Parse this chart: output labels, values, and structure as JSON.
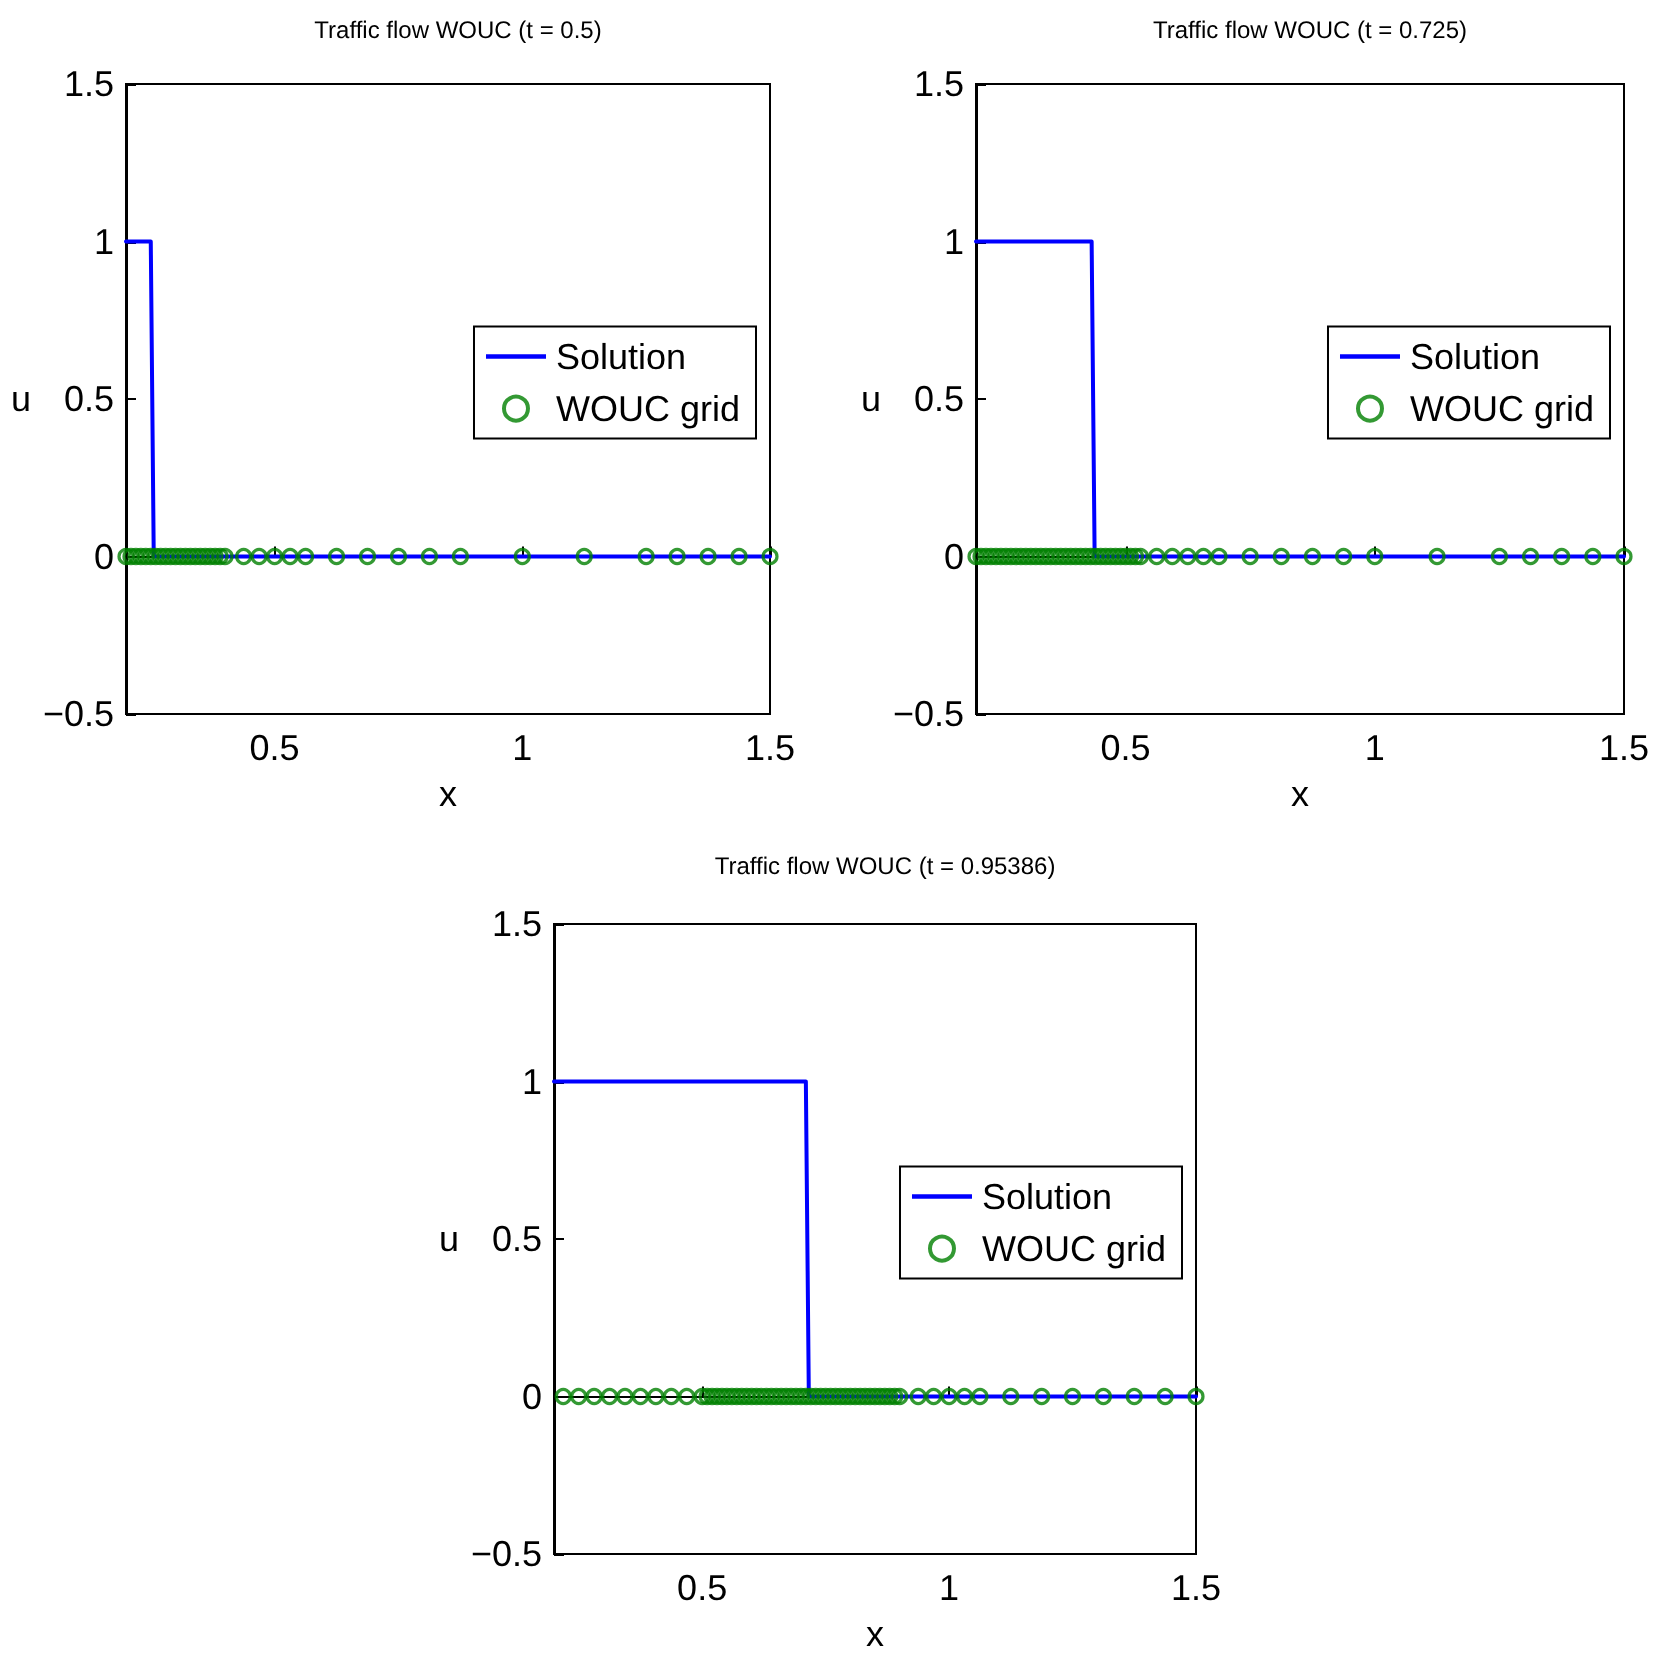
{
  "chart_data": [
    {
      "type": "line",
      "title": "Traffic flow WOUC (t = 0.5)",
      "xlabel": "x",
      "ylabel": "u",
      "xlim": [
        0.2,
        1.5
      ],
      "xticks": [
        0.5,
        1,
        1.5
      ],
      "ylim": [
        -0.5,
        1.5
      ],
      "yticks": [
        -0.5,
        0,
        0.5,
        1,
        1.5
      ],
      "legend": "right",
      "series": [
        {
          "name": "Solution",
          "type": "line",
          "marker": "none",
          "color": "#0000ff",
          "x": [
            0.2,
            0.25,
            0.256,
            1.5
          ],
          "values": [
            1,
            1,
            0,
            0
          ]
        },
        {
          "name": "WOUC grid",
          "type": "scatter",
          "marker": "circle",
          "color": "#008000",
          "x": [
            0.2,
            0.21,
            0.22,
            0.23,
            0.24,
            0.25,
            0.26,
            0.27,
            0.28,
            0.29,
            0.3,
            0.31,
            0.32,
            0.33,
            0.34,
            0.35,
            0.36,
            0.37,
            0.38,
            0.39,
            0.4,
            0.4375,
            0.46875,
            0.5,
            0.53125,
            0.5625,
            0.625,
            0.6875,
            0.75,
            0.8125,
            0.875,
            1,
            1.125,
            1.25,
            1.3125,
            1.375,
            1.4375,
            1.5
          ],
          "values": [
            0,
            0,
            0,
            0,
            0,
            0,
            0,
            0,
            0,
            0,
            0,
            0,
            0,
            0,
            0,
            0,
            0,
            0,
            0,
            0,
            0,
            0,
            0,
            0,
            0,
            0,
            0,
            0,
            0,
            0,
            0,
            0,
            0,
            0,
            0,
            0,
            0,
            0
          ]
        }
      ]
    },
    {
      "type": "line",
      "title": "Traffic flow WOUC (t = 0.725)",
      "xlabel": "x",
      "ylabel": "u",
      "xlim": [
        0.2,
        1.5
      ],
      "xticks": [
        0.5,
        1,
        1.5
      ],
      "ylim": [
        -0.5,
        1.5
      ],
      "yticks": [
        -0.5,
        0,
        0.5,
        1,
        1.5
      ],
      "legend": "right",
      "series": [
        {
          "name": "Solution",
          "type": "line",
          "marker": "none",
          "color": "#0000ff",
          "x": [
            0.2,
            0.432,
            0.438,
            1.5
          ],
          "values": [
            1,
            1,
            0,
            0
          ]
        },
        {
          "name": "WOUC grid",
          "type": "scatter",
          "marker": "circle",
          "color": "#008000",
          "x": [
            0.2,
            0.21,
            0.22,
            0.23,
            0.24,
            0.25,
            0.26,
            0.27,
            0.28,
            0.29,
            0.3,
            0.31,
            0.32,
            0.33,
            0.34,
            0.35,
            0.36,
            0.37,
            0.38,
            0.39,
            0.4,
            0.41,
            0.42,
            0.43,
            0.44,
            0.45,
            0.46,
            0.47,
            0.48,
            0.49,
            0.5,
            0.51,
            0.52,
            0.53,
            0.5625,
            0.59375,
            0.625,
            0.65625,
            0.6875,
            0.75,
            0.8125,
            0.875,
            0.9375,
            1,
            1.125,
            1.25,
            1.3125,
            1.375,
            1.4375,
            1.5
          ],
          "values": [
            0,
            0,
            0,
            0,
            0,
            0,
            0,
            0,
            0,
            0,
            0,
            0,
            0,
            0,
            0,
            0,
            0,
            0,
            0,
            0,
            0,
            0,
            0,
            0,
            0,
            0,
            0,
            0,
            0,
            0,
            0,
            0,
            0,
            0,
            0,
            0,
            0,
            0,
            0,
            0,
            0,
            0,
            0,
            0,
            0,
            0,
            0,
            0,
            0,
            0
          ]
        }
      ]
    },
    {
      "type": "line",
      "title": "Traffic flow WOUC (t = 0.95386)",
      "xlabel": "x",
      "ylabel": "u",
      "xlim": [
        0.2,
        1.5
      ],
      "xticks": [
        0.5,
        1,
        1.5
      ],
      "ylim": [
        -0.5,
        1.5
      ],
      "yticks": [
        -0.5,
        0,
        0.5,
        1,
        1.5
      ],
      "legend": "right",
      "series": [
        {
          "name": "Solution",
          "type": "line",
          "marker": "none",
          "color": "#0000ff",
          "x": [
            0.2,
            0.71,
            0.716,
            1.5
          ],
          "values": [
            1,
            1,
            0,
            0
          ]
        },
        {
          "name": "WOUC grid",
          "type": "scatter",
          "marker": "circle",
          "color": "#008000",
          "x": [
            0.21875,
            0.25,
            0.28125,
            0.3125,
            0.34375,
            0.375,
            0.40625,
            0.4375,
            0.46875,
            0.5,
            0.51,
            0.52,
            0.53,
            0.54,
            0.55,
            0.56,
            0.57,
            0.58,
            0.59,
            0.6,
            0.61,
            0.62,
            0.63,
            0.64,
            0.65,
            0.66,
            0.67,
            0.68,
            0.69,
            0.7,
            0.71,
            0.72,
            0.73,
            0.74,
            0.75,
            0.76,
            0.77,
            0.78,
            0.79,
            0.8,
            0.81,
            0.82,
            0.83,
            0.84,
            0.85,
            0.86,
            0.87,
            0.88,
            0.89,
            0.9,
            0.9375,
            0.96875,
            1,
            1.03125,
            1.0625,
            1.125,
            1.1875,
            1.25,
            1.3125,
            1.375,
            1.4375,
            1.5
          ],
          "values": [
            0,
            0,
            0,
            0,
            0,
            0,
            0,
            0,
            0,
            0,
            0,
            0,
            0,
            0,
            0,
            0,
            0,
            0,
            0,
            0,
            0,
            0,
            0,
            0,
            0,
            0,
            0,
            0,
            0,
            0,
            0,
            0,
            0,
            0,
            0,
            0,
            0,
            0,
            0,
            0,
            0,
            0,
            0,
            0,
            0,
            0,
            0,
            0,
            0,
            0,
            0,
            0,
            0,
            0,
            0,
            0,
            0,
            0,
            0,
            0,
            0,
            0
          ]
        }
      ]
    }
  ]
}
